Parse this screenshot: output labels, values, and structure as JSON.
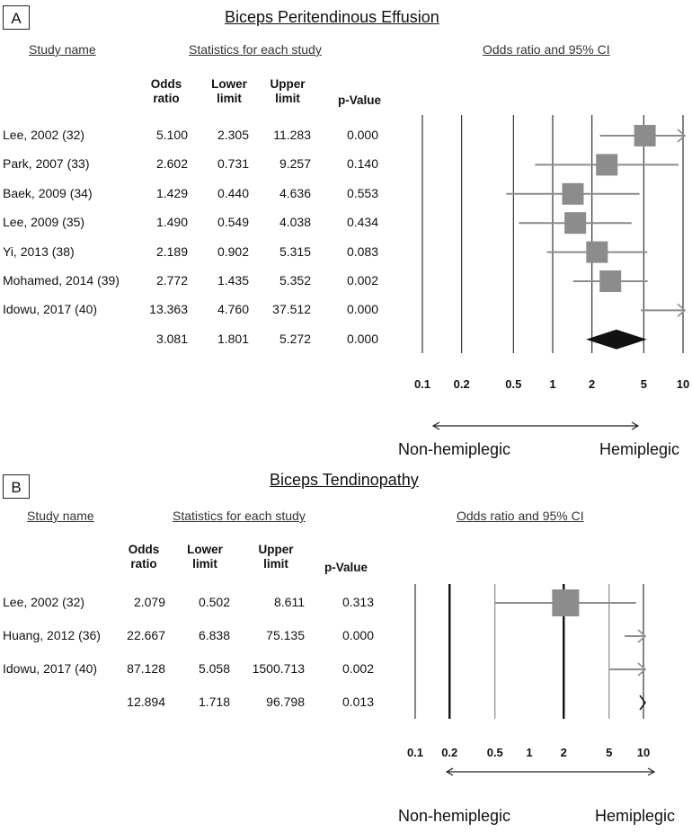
{
  "panels": [
    {
      "label": "A",
      "title": "Biceps Peritendinous Effusion",
      "headers": {
        "study": "Study name",
        "stats": "Statistics for each study",
        "ci": "Odds ratio and 95% CI"
      },
      "columns": [
        "Odds\nratio",
        "Lower\nlimit",
        "Upper\nlimit",
        "p-Value"
      ],
      "rows": [
        {
          "study": "Lee, 2002 (32)",
          "or": "5.100",
          "lower": "2.305",
          "upper": "11.283",
          "p": "0.000"
        },
        {
          "study": "Park, 2007 (33)",
          "or": "2.602",
          "lower": "0.731",
          "upper": "9.257",
          "p": "0.140"
        },
        {
          "study": "Baek, 2009 (34)",
          "or": "1.429",
          "lower": "0.440",
          "upper": "4.636",
          "p": "0.553"
        },
        {
          "study": "Lee, 2009 (35)",
          "or": "1.490",
          "lower": "0.549",
          "upper": "4.038",
          "p": "0.434"
        },
        {
          "study": "Yi, 2013 (38)",
          "or": "2.189",
          "lower": "0.902",
          "upper": "5.315",
          "p": "0.083"
        },
        {
          "study": "Mohamed, 2014 (39)",
          "or": "2.772",
          "lower": "1.435",
          "upper": "5.352",
          "p": "0.002"
        },
        {
          "study": "Idowu, 2017 (40)",
          "or": "13.363",
          "lower": "4.760",
          "upper": "37.512",
          "p": "0.000"
        },
        {
          "study": "",
          "or": "3.081",
          "lower": "1.801",
          "upper": "5.272",
          "p": "0.000"
        }
      ],
      "tick_labels": [
        "0.1",
        "0.2",
        "0.5",
        "1",
        "2",
        "5",
        "10"
      ],
      "direction_left": "Non-hemiplegic",
      "direction_right": "Hemiplegic"
    },
    {
      "label": "B",
      "title": "Biceps Tendinopathy",
      "headers": {
        "study": "Study name",
        "stats": "Statistics for each study",
        "ci": "Odds ratio and 95% CI"
      },
      "columns": [
        "Odds\nratio",
        "Lower\nlimit",
        "Upper\nlimit",
        "p-Value"
      ],
      "rows": [
        {
          "study": "Lee, 2002 (32)",
          "or": "2.079",
          "lower": "0.502",
          "upper": "8.611",
          "p": "0.313"
        },
        {
          "study": "Huang, 2012 (36)",
          "or": "22.667",
          "lower": "6.838",
          "upper": "75.135",
          "p": "0.000"
        },
        {
          "study": "Idowu, 2017 (40)",
          "or": "87.128",
          "lower": "5.058",
          "upper": "1500.713",
          "p": "0.002"
        },
        {
          "study": "",
          "or": "12.894",
          "lower": "1.718",
          "upper": "96.798",
          "p": "0.013"
        }
      ],
      "tick_labels": [
        "0.1",
        "0.2",
        "0.5",
        "1",
        "2",
        "5",
        "10"
      ],
      "direction_left": "Non-hemiplegic",
      "direction_right": "Hemiplegic"
    }
  ],
  "chart_data": [
    {
      "type": "scatter",
      "title": "Biceps Peritendinous Effusion",
      "xlabel": "Odds ratio and 95% CI",
      "x_scale": "log",
      "xlim": [
        0.1,
        10
      ],
      "x_ticks": [
        0.1,
        0.2,
        0.5,
        1,
        2,
        5,
        10
      ],
      "categories": [
        "Lee, 2002 (32)",
        "Park, 2007 (33)",
        "Baek, 2009 (34)",
        "Lee, 2009 (35)",
        "Yi, 2013 (38)",
        "Mohamed, 2014 (39)",
        "Idowu, 2017 (40)",
        ""
      ],
      "odds_ratio": [
        5.1,
        2.602,
        1.429,
        1.49,
        2.189,
        2.772,
        13.363,
        3.081
      ],
      "lower": [
        2.305,
        0.731,
        0.44,
        0.549,
        0.902,
        1.435,
        4.76,
        1.801
      ],
      "upper": [
        11.283,
        9.257,
        4.636,
        4.038,
        5.315,
        5.352,
        37.512,
        5.272
      ],
      "p_value": [
        0.0,
        0.14,
        0.553,
        0.434,
        0.083,
        0.002,
        0.0,
        0.0
      ],
      "grid": true,
      "marker_color": "#8c8c8c",
      "line_color": "#8c8c8c",
      "summary_color": "#111111"
    },
    {
      "type": "scatter",
      "title": "Biceps Tendinopathy",
      "xlabel": "Odds ratio and 95% CI",
      "x_scale": "log",
      "xlim": [
        0.1,
        10
      ],
      "x_ticks": [
        0.1,
        0.2,
        0.5,
        1,
        2,
        5,
        10
      ],
      "categories": [
        "Lee, 2002 (32)",
        "Huang, 2012 (36)",
        "Idowu, 2017 (40)",
        ""
      ],
      "odds_ratio": [
        2.079,
        22.667,
        87.128,
        12.894
      ],
      "lower": [
        0.502,
        6.838,
        5.058,
        1.718
      ],
      "upper": [
        8.611,
        75.135,
        1500.713,
        96.798
      ],
      "p_value": [
        0.313,
        0.0,
        0.002,
        0.013
      ],
      "grid": true,
      "marker_color": "#8c8c8c",
      "line_color": "#8c8c8c",
      "summary_color": "#111111"
    }
  ]
}
